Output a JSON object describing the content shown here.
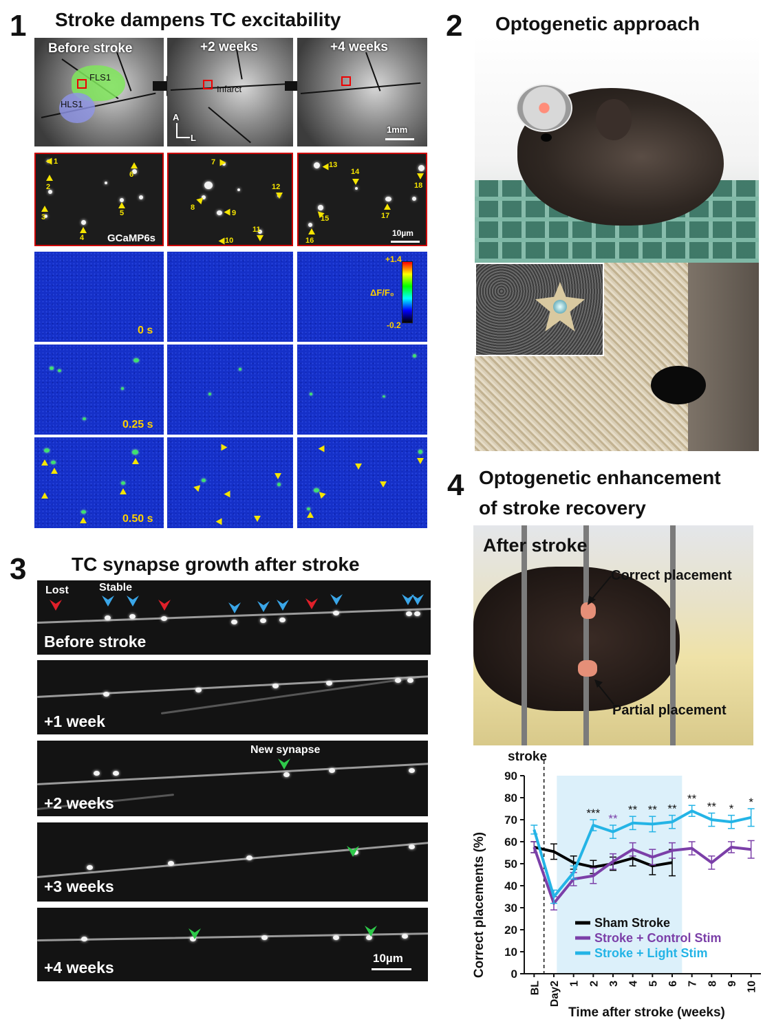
{
  "panel1": {
    "number": "1",
    "title": "Stroke dampens TC excitability",
    "images": {
      "before_label": "Before stroke",
      "week2_label": "+2 weeks",
      "week4_label": "+4 weeks",
      "fls1": "FLS1",
      "hls1": "HLS1",
      "infarct": "Infarct",
      "axis_a": "A",
      "axis_l": "L",
      "scale": "1mm"
    },
    "cells": {
      "indicator": "GCaMP6s",
      "scale": "10µm",
      "labels": [
        "1",
        "2",
        "3",
        "4",
        "5",
        "6",
        "7",
        "8",
        "9",
        "10",
        "11",
        "12",
        "13",
        "14",
        "15",
        "16",
        "17",
        "18"
      ]
    },
    "colorbar": {
      "max": "+1.4",
      "min": "-0.2",
      "label": "ΔF/F₀",
      "colors": [
        "#ff0000",
        "#ffff00",
        "#00ff00",
        "#00ffff",
        "#0000ff",
        "#000000"
      ]
    },
    "times": [
      "0 s",
      "0.25 s",
      "0.50 s"
    ]
  },
  "panel2": {
    "number": "2",
    "title": "Optogenetic approach"
  },
  "panel3": {
    "number": "3",
    "title": "TC synapse growth after stroke",
    "lost": "Lost",
    "stable": "Stable",
    "new_synapse": "New synapse",
    "rows": [
      "Before stroke",
      "+1 week",
      "+2 weeks",
      "+3 weeks",
      "+4 weeks"
    ],
    "scale": "10µm",
    "colors": {
      "lost": "#e0202a",
      "stable": "#3aa6e8",
      "new": "#2ec94a"
    }
  },
  "panel4": {
    "number": "4",
    "title_line1": "Optogenetic enhancement",
    "title_line2": "of stroke recovery",
    "photo_label": "After stroke",
    "correct": "Correct placement",
    "partial": "Partial placement"
  },
  "chart_data": {
    "type": "line",
    "stroke_marker": "stroke",
    "ylabel": "Correct placements (%)",
    "xlabel": "Time after stroke (weeks)",
    "ylim": [
      0,
      90
    ],
    "yticks": [
      "0",
      "10",
      "20",
      "30",
      "40",
      "50",
      "60",
      "70",
      "80",
      "90"
    ],
    "categories": [
      "BL",
      "Day2",
      "1",
      "2",
      "3",
      "4",
      "5",
      "6",
      "7",
      "8",
      "9",
      "10"
    ],
    "light_stim_shade": [
      "1",
      "6"
    ],
    "series": [
      {
        "name": "Sham Stroke",
        "color": "#000000",
        "values": [
          57.5,
          55.5,
          50.5,
          48.5,
          50,
          52.5,
          49,
          50.5,
          null,
          null,
          null,
          null
        ],
        "errors": [
          2.5,
          3.5,
          3,
          3,
          3,
          3.5,
          4,
          6,
          null,
          null,
          null,
          null
        ]
      },
      {
        "name": "Stroke + Control Stim",
        "color": "#7b3fa8",
        "values": [
          57.5,
          32,
          43,
          44.5,
          51,
          56.5,
          53,
          56,
          57,
          50.5,
          57.5,
          56.5
        ],
        "errors": [
          2.5,
          3,
          3,
          3.5,
          3.5,
          3,
          3.5,
          3.5,
          3,
          3,
          2.5,
          4
        ]
      },
      {
        "name": "Stroke + Light Stim",
        "color": "#24b4e6",
        "values": [
          65.5,
          35,
          46,
          67.5,
          64.5,
          68.5,
          68,
          69,
          74,
          70,
          69,
          71
        ],
        "errors": [
          2,
          3,
          3,
          2.5,
          3,
          3,
          3.5,
          3,
          2.5,
          3,
          3,
          4
        ]
      }
    ],
    "significance": [
      {
        "x": "2",
        "text": "***",
        "color": "#111111"
      },
      {
        "x": "3",
        "text": "**",
        "color": "#7b3fa8"
      },
      {
        "x": "4",
        "text": "**",
        "color": "#111111"
      },
      {
        "x": "5",
        "text": "**",
        "color": "#111111"
      },
      {
        "x": "6",
        "text": "**",
        "color": "#111111"
      },
      {
        "x": "7",
        "text": "**",
        "color": "#111111"
      },
      {
        "x": "8",
        "text": "**",
        "color": "#111111"
      },
      {
        "x": "9",
        "text": "*",
        "color": "#111111"
      },
      {
        "x": "10",
        "text": "*",
        "color": "#111111"
      }
    ],
    "legend": "bottom-center"
  }
}
